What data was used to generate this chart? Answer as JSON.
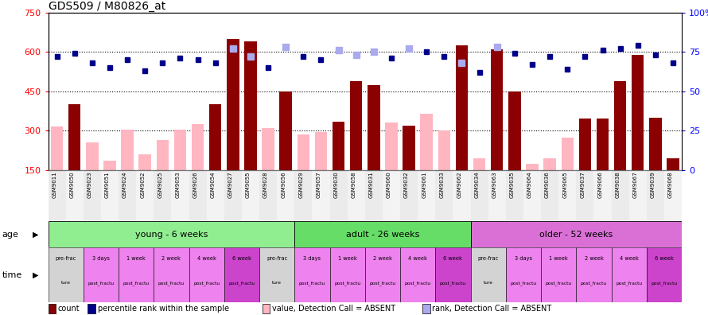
{
  "title": "GDS509 / M80826_at",
  "sample_ids": [
    "GSM9011",
    "GSM9050",
    "GSM9023",
    "GSM9051",
    "GSM9024",
    "GSM9052",
    "GSM9025",
    "GSM9053",
    "GSM9026",
    "GSM9054",
    "GSM9027",
    "GSM9055",
    "GSM9028",
    "GSM9056",
    "GSM9029",
    "GSM9057",
    "GSM9030",
    "GSM9058",
    "GSM9031",
    "GSM9060",
    "GSM9032",
    "GSM9061",
    "GSM9033",
    "GSM9062",
    "GSM9034",
    "GSM9063",
    "GSM9035",
    "GSM9064",
    "GSM9036",
    "GSM9065",
    "GSM9037",
    "GSM9066",
    "GSM9038",
    "GSM9067",
    "GSM9039",
    "GSM9068"
  ],
  "count_values": [
    315,
    400,
    255,
    185,
    305,
    210,
    265,
    305,
    325,
    400,
    650,
    640,
    310,
    450,
    285,
    295,
    335,
    490,
    475,
    330,
    320,
    365,
    300,
    625,
    195,
    610,
    450,
    175,
    195,
    275,
    345,
    345,
    490,
    590,
    350,
    195
  ],
  "count_absent": [
    true,
    false,
    true,
    true,
    true,
    true,
    true,
    true,
    true,
    false,
    false,
    false,
    true,
    false,
    true,
    true,
    false,
    false,
    false,
    true,
    false,
    true,
    true,
    false,
    true,
    false,
    false,
    true,
    true,
    true,
    false,
    false,
    false,
    false,
    false,
    false
  ],
  "rank_values": [
    72,
    74,
    68,
    65,
    70,
    63,
    68,
    71,
    70,
    68,
    77,
    72,
    65,
    78,
    72,
    70,
    76,
    73,
    75,
    71,
    77,
    75,
    72,
    68,
    62,
    78,
    74,
    67,
    72,
    64,
    72,
    76,
    77,
    79,
    73,
    68
  ],
  "rank_absent": [
    false,
    false,
    false,
    false,
    false,
    false,
    false,
    false,
    false,
    false,
    true,
    true,
    false,
    true,
    false,
    false,
    true,
    true,
    true,
    false,
    true,
    false,
    false,
    true,
    false,
    true,
    false,
    false,
    false,
    false,
    false,
    false,
    false,
    false,
    false,
    false
  ],
  "ylim": [
    150,
    750
  ],
  "right_ylim": [
    0,
    100
  ],
  "yticks_left": [
    150,
    300,
    450,
    600,
    750
  ],
  "yticks_right": [
    0,
    25,
    50,
    75,
    100
  ],
  "bar_color_present": "#8B0000",
  "bar_color_absent": "#FFB6C1",
  "dot_color_present": "#00008B",
  "dot_color_absent": "#AAAAEE",
  "age_groups": [
    {
      "label": "young - 6 weeks",
      "start": 0,
      "end": 14,
      "color": "#90EE90"
    },
    {
      "label": "adult - 26 weeks",
      "start": 14,
      "end": 24,
      "color": "#66DD66"
    },
    {
      "label": "older - 52 weeks",
      "start": 24,
      "end": 36,
      "color": "#DA70D6"
    }
  ],
  "time_colors_list": [
    "#D3D3D3",
    "#EE82EE",
    "#EE82EE",
    "#EE82EE",
    "#EE82EE",
    "#CC44CC",
    "#D3D3D3",
    "#EE82EE",
    "#EE82EE",
    "#EE82EE",
    "#EE82EE",
    "#CC44CC",
    "#D3D3D3",
    "#EE82EE",
    "#EE82EE",
    "#EE82EE",
    "#EE82EE",
    "#CC44CC"
  ],
  "time_labels_top": [
    "pre-frac",
    "3 days",
    "1 week",
    "2 week",
    "4 week",
    "6 week",
    "pre-frac",
    "3 days",
    "1 week",
    "2 week",
    "4 week",
    "6 week",
    "pre-frac",
    "3 days",
    "1 week",
    "2 week",
    "4 week",
    "6 week"
  ],
  "time_labels_bot": [
    "ture",
    "post_fractu",
    "post_fractu",
    "post_fractu",
    "post_fractu",
    "post_fractu",
    "ture",
    "post_fractu",
    "post_fractu",
    "post_fractu",
    "post_fractu",
    "post_fractu",
    "ture",
    "post_fractu",
    "post_fractu",
    "post_fractu",
    "post_fractu",
    "post_fractu"
  ],
  "legend_items": [
    {
      "color": "#8B0000",
      "label": "count"
    },
    {
      "color": "#00008B",
      "label": "percentile rank within the sample"
    },
    {
      "color": "#FFB6C1",
      "label": "value, Detection Call = ABSENT"
    },
    {
      "color": "#AAAAEE",
      "label": "rank, Detection Call = ABSENT"
    }
  ]
}
